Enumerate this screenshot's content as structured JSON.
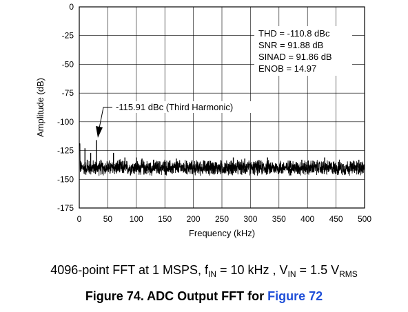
{
  "chart_data": {
    "type": "line",
    "title": "",
    "xlabel": "Frequency (kHz)",
    "ylabel": "Amplitude (dB)",
    "xlim": [
      0,
      500
    ],
    "ylim": [
      -175,
      0
    ],
    "xticks": [
      "0",
      "50",
      "100",
      "150",
      "200",
      "250",
      "300",
      "350",
      "400",
      "450",
      "500"
    ],
    "yticks": [
      "0",
      "-25",
      "-50",
      "-75",
      "-100",
      "-125",
      "-150",
      "-175"
    ],
    "grid": true,
    "series": [
      {
        "noise_floor_db": -140,
        "noise_spread_db": 6,
        "spurs": [
          {
            "x": 10,
            "y": -123
          },
          {
            "x": 14,
            "y": -133
          },
          {
            "x": 20,
            "y": -127
          },
          {
            "x": 30,
            "y": -115.91
          },
          {
            "x": 38,
            "y": -133
          },
          {
            "x": 60,
            "y": -127
          },
          {
            "x": 70,
            "y": -133
          },
          {
            "x": 80,
            "y": -131
          },
          {
            "x": 100,
            "y": -131
          },
          {
            "x": 110,
            "y": -132
          },
          {
            "x": 130,
            "y": -133
          },
          {
            "x": 150,
            "y": -133
          },
          {
            "x": 170,
            "y": -132
          },
          {
            "x": 188,
            "y": -134
          },
          {
            "x": 230,
            "y": -134
          },
          {
            "x": 270,
            "y": -131
          },
          {
            "x": 290,
            "y": -132
          },
          {
            "x": 330,
            "y": -131
          },
          {
            "x": 370,
            "y": -134
          },
          {
            "x": 390,
            "y": -133
          },
          {
            "x": 410,
            "y": -134
          },
          {
            "x": 430,
            "y": -131
          },
          {
            "x": 490,
            "y": -133
          }
        ]
      }
    ],
    "annotations": {
      "metrics": [
        "THD = -110.8 dBc",
        "SNR = 91.88 dB",
        "SINAD = 91.86 dB",
        "ENOB = 14.97"
      ],
      "harmonic_label": "-115.91 dBc (Third Harmonic)",
      "harmonic_x": 30,
      "harmonic_y": -115.91
    }
  },
  "caption": {
    "prefix": "4096-point FFT at 1 MSPS, f",
    "fin_sub": "IN",
    "fin_val": " = 10 kHz , V",
    "vin_sub": "IN",
    "vin_val": " = 1.5 V",
    "rms_sub": "RMS"
  },
  "figure": {
    "label": "Figure 74. ADC Output FFT for ",
    "link": "Figure 72"
  }
}
